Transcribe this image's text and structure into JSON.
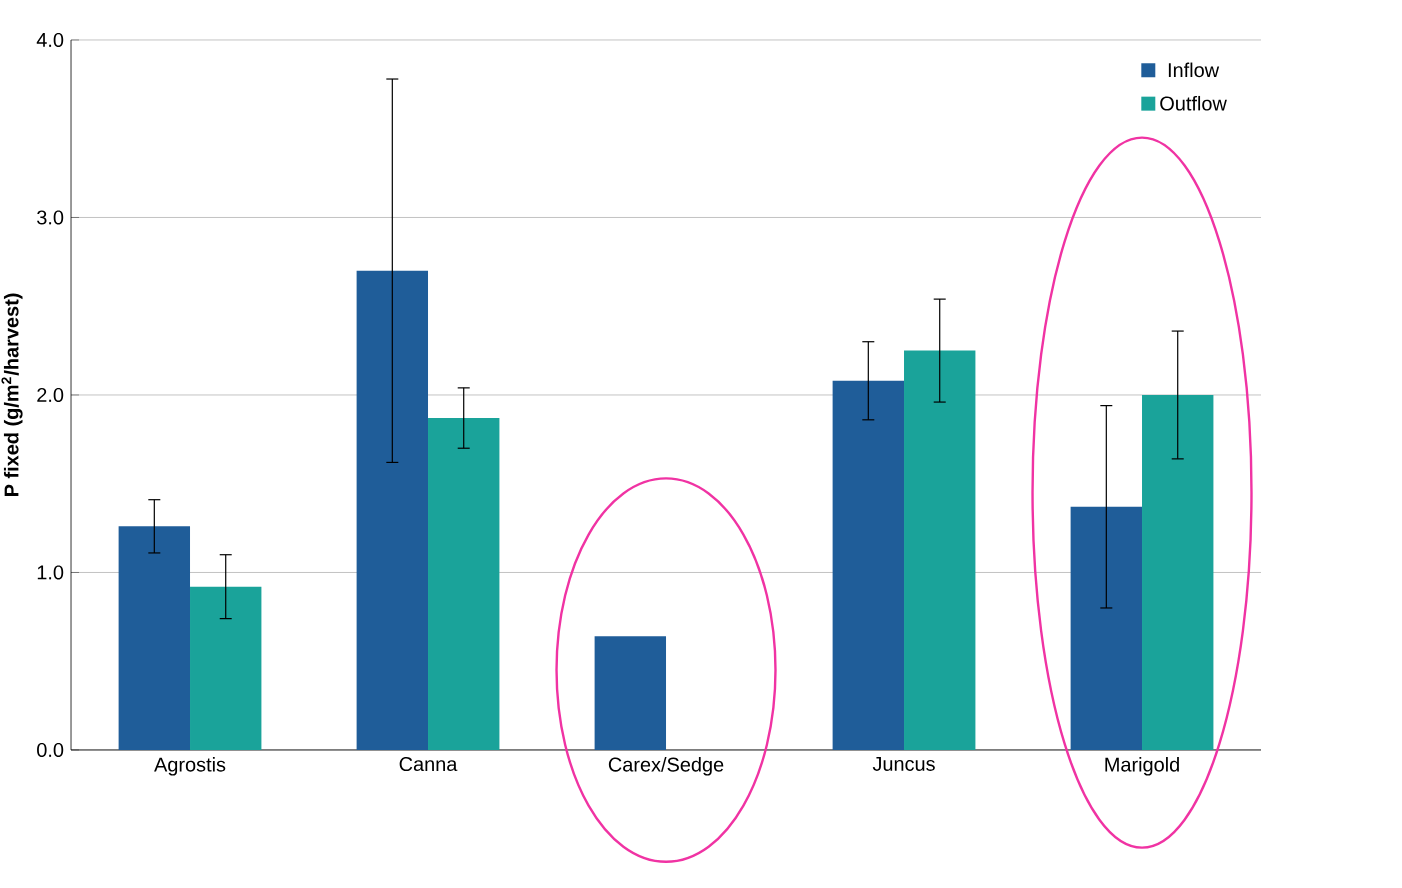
{
  "chart_data": {
    "type": "bar",
    "ylabel": "P fixed (g/m$^{2}$/harvest)",
    "categories": [
      "Agrostis",
      "Canna",
      "Carex/Sedge",
      "Juncus",
      "Marigold"
    ],
    "series": [
      {
        "name": "Inflow",
        "color": "#1f5d99",
        "values": [
          1.26,
          2.7,
          0.64,
          2.08,
          1.37
        ],
        "errors": [
          0.15,
          1.08,
          null,
          0.22,
          0.57
        ]
      },
      {
        "name": "Outflow",
        "color": "#1aa39a",
        "values": [
          0.92,
          1.87,
          null,
          2.25,
          2.0
        ],
        "errors": [
          0.18,
          0.17,
          null,
          0.29,
          0.36
        ]
      }
    ],
    "ylim": [
      0,
      4
    ],
    "yticks": [
      {
        "value": 0,
        "label": "0.0"
      },
      {
        "value": 1,
        "label": "1.0"
      },
      {
        "value": 2,
        "label": "2.0"
      },
      {
        "value": 3,
        "label": "3.0"
      },
      {
        "value": 4,
        "label": "4.0"
      }
    ],
    "grid": "y",
    "legend": "top right"
  }
}
